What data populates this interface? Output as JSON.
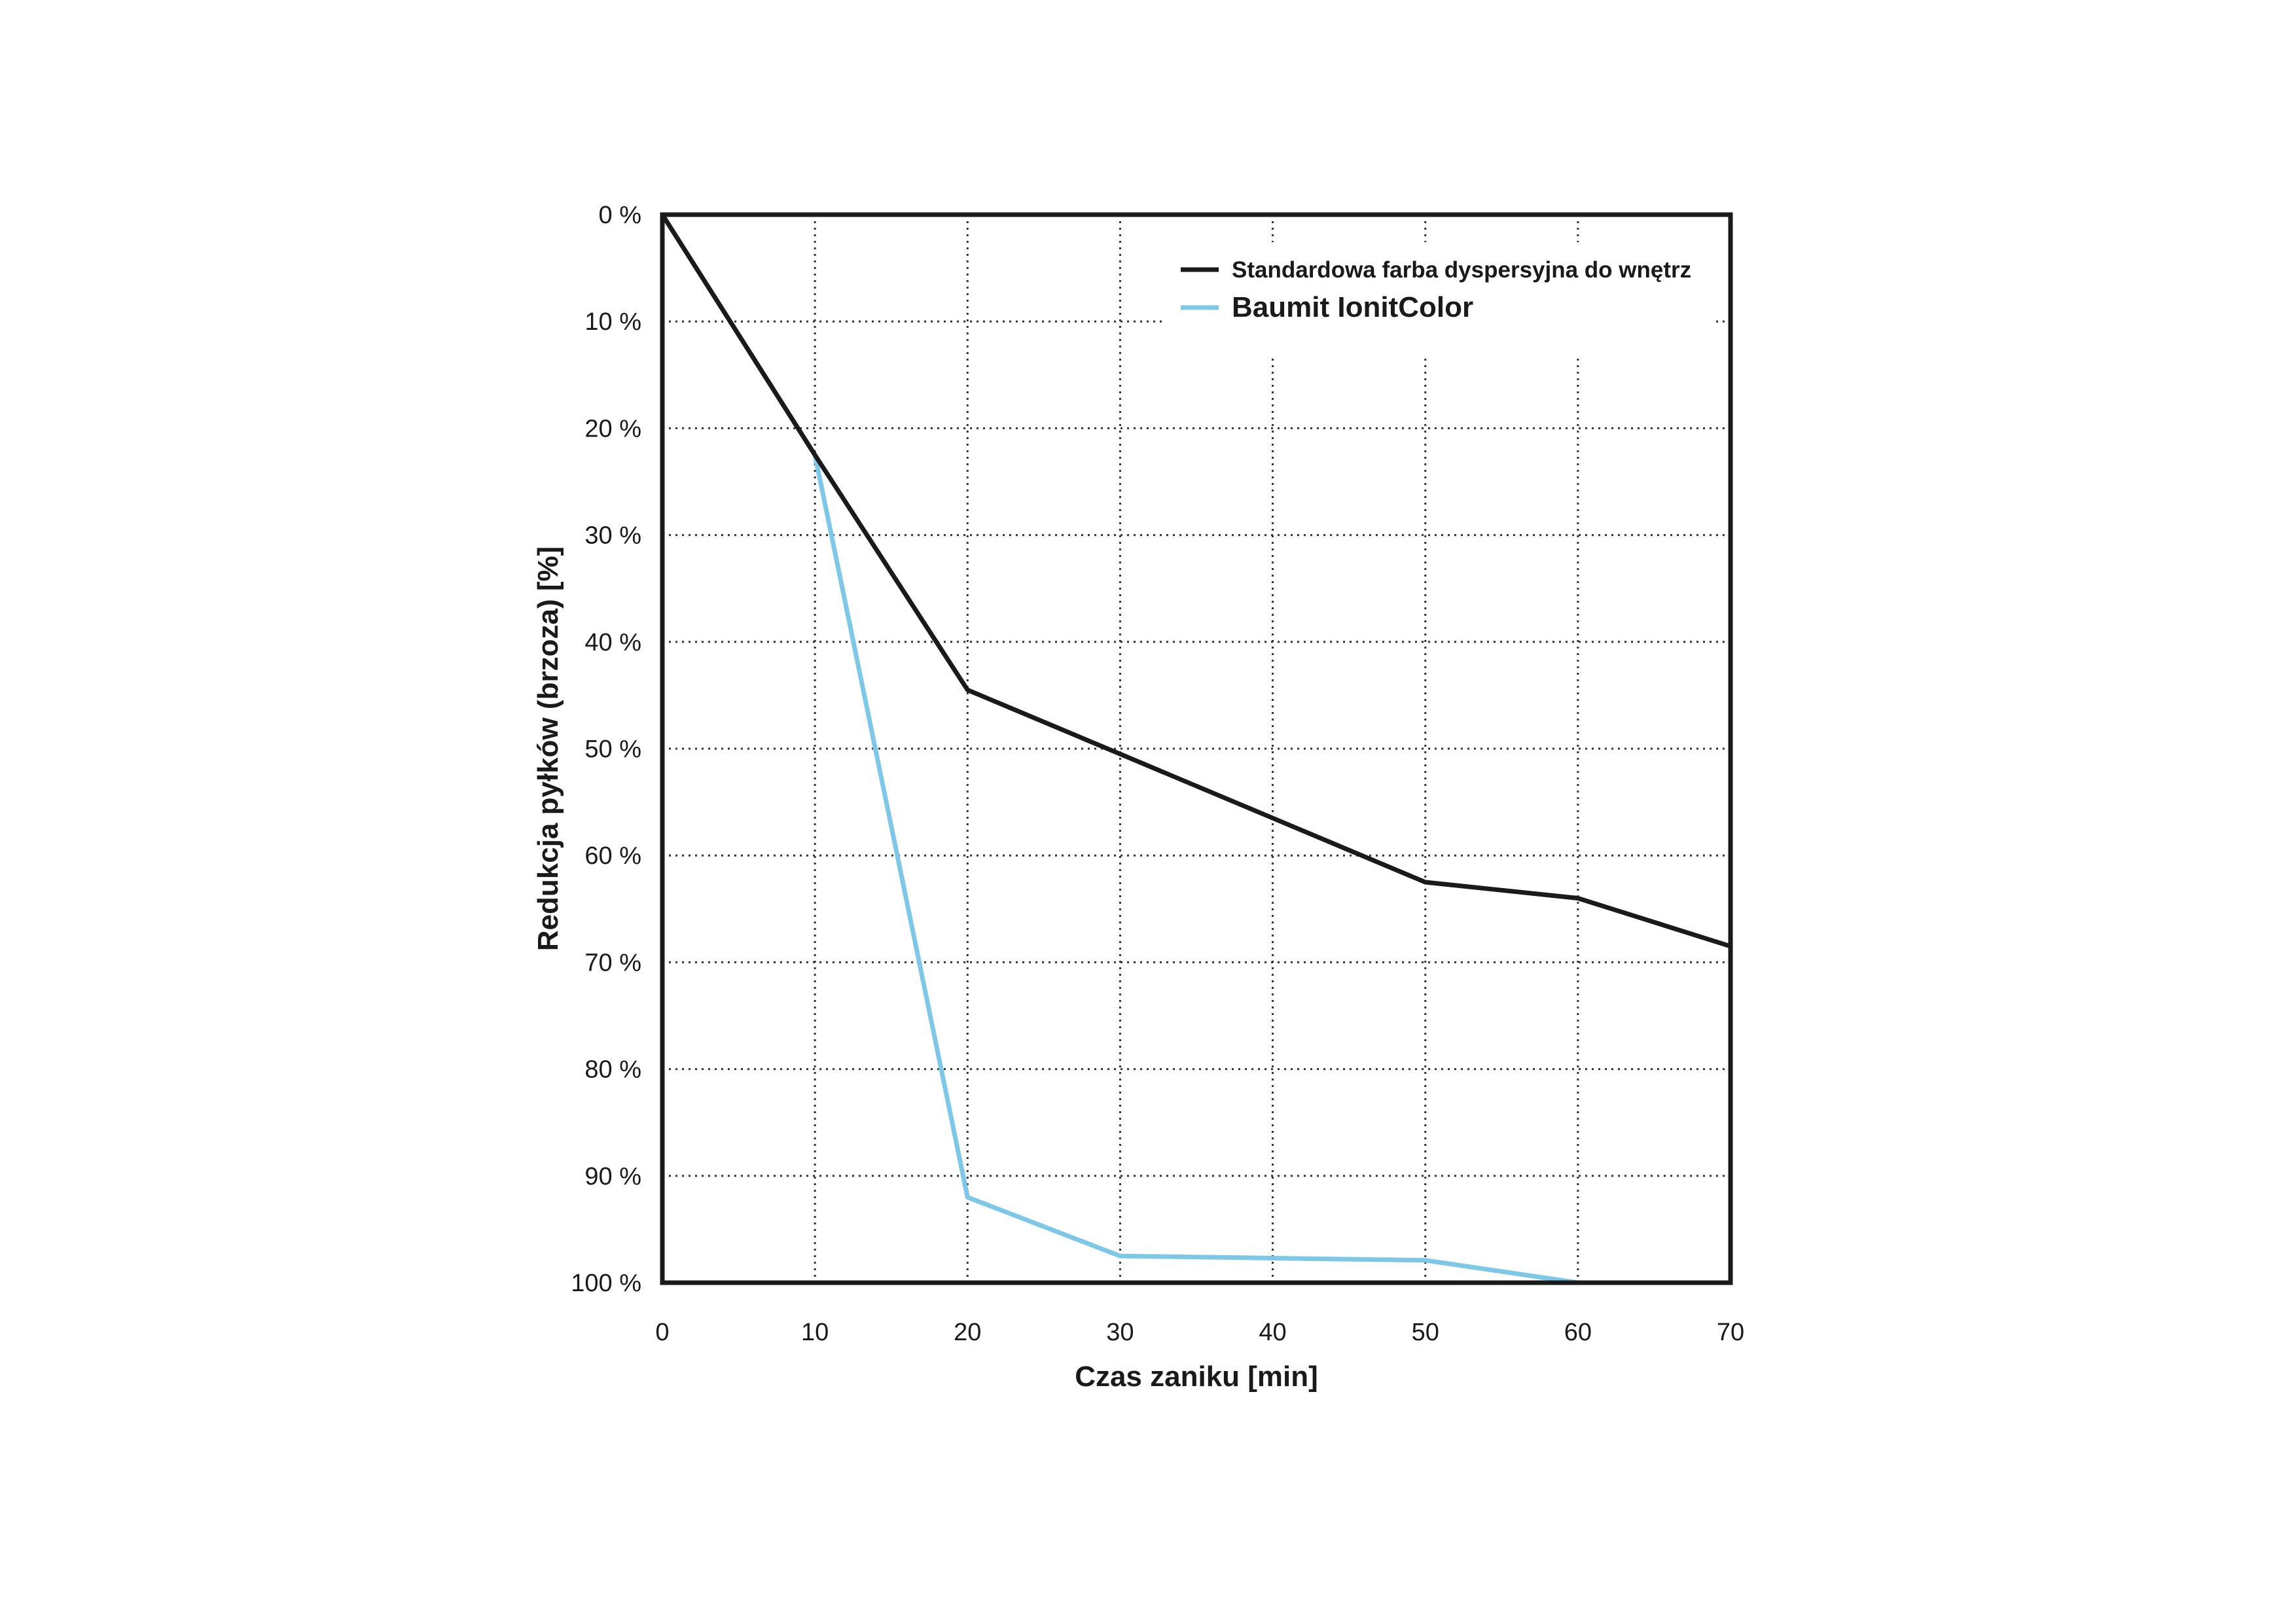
{
  "chart_data": {
    "type": "line",
    "title": "",
    "xlabel": "Czas zaniku [min]",
    "ylabel": "Redukcja pyłków (brzoza) [%]",
    "x": [
      0,
      10,
      20,
      30,
      40,
      50,
      60,
      70
    ],
    "xlim": [
      0,
      70
    ],
    "ylim": [
      0,
      100
    ],
    "y_inverted": true,
    "x_ticks": [
      "0",
      "10",
      "20",
      "30",
      "40",
      "50",
      "60",
      "70"
    ],
    "y_ticks": [
      "0 %",
      "10 %",
      "20 %",
      "30 %",
      "40 %",
      "50 %",
      "60 %",
      "70 %",
      "80 %",
      "90 %",
      "100 %"
    ],
    "grid": true,
    "legend_position": "top-right",
    "series": [
      {
        "name": "Standardowa farba dyspersyjna do wnętrz",
        "color": "#1a1a1a",
        "values": [
          0,
          22.5,
          44.5,
          50.5,
          56.5,
          62.5,
          64,
          68.5
        ]
      },
      {
        "name": "Baumit IonitColor",
        "color": "#7dc8e8",
        "values": [
          0,
          22.5,
          92,
          97.5,
          97.7,
          97.9,
          100,
          100
        ]
      }
    ]
  }
}
